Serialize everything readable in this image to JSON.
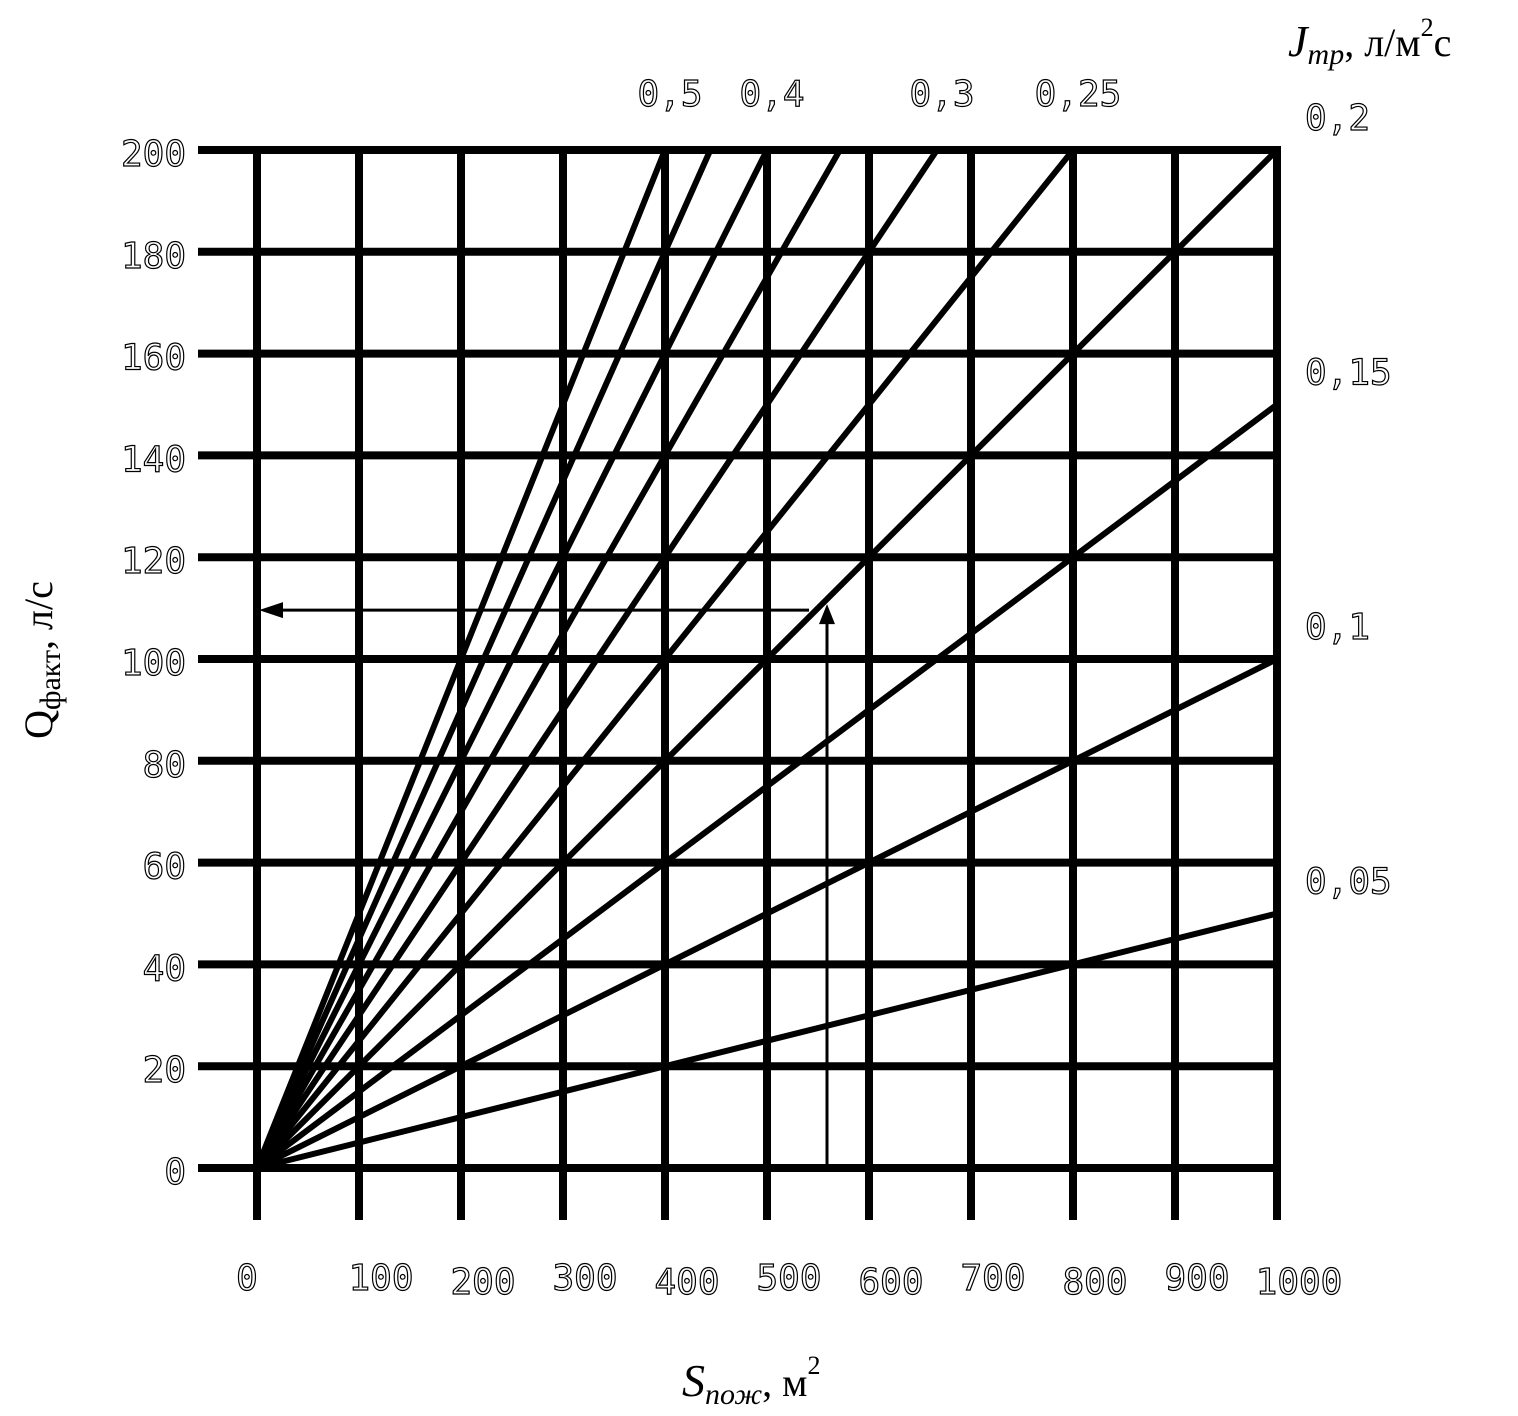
{
  "chart_data": {
    "type": "line",
    "xlabel": {
      "main": "S",
      "sub": "пож",
      "unit": ", м",
      "sup": "2"
    },
    "ylabel": {
      "main": "Q",
      "sub": "факт",
      "unit": ", л/с"
    },
    "param_label": {
      "main": "J",
      "sub": "тр",
      "unit": ", л/м",
      "sup": "2",
      "tail": "с"
    },
    "xlim": [
      0,
      1000
    ],
    "ylim": [
      0,
      200
    ],
    "x_ticks": [
      "0",
      "100",
      "200",
      "300",
      "400",
      "500",
      "600",
      "700",
      "800",
      "900",
      "1000"
    ],
    "y_ticks": [
      "0",
      "20",
      "40",
      "60",
      "80",
      "100",
      "120",
      "140",
      "160",
      "180",
      "200"
    ],
    "grid": true,
    "relation": "Q = J * S",
    "series": [
      {
        "J": 0.5,
        "label": "0,5"
      },
      {
        "J": 0.45,
        "label": ""
      },
      {
        "J": 0.4,
        "label": "0,4"
      },
      {
        "J": 0.35,
        "label": ""
      },
      {
        "J": 0.3,
        "label": "0,3"
      },
      {
        "J": 0.25,
        "label": "0,25"
      },
      {
        "J": 0.2,
        "label": "0,2"
      },
      {
        "J": 0.15,
        "label": "0,15"
      },
      {
        "J": 0.1,
        "label": "0,1"
      },
      {
        "J": 0.05,
        "label": "0,05"
      }
    ],
    "annotation": {
      "S": 550,
      "Q": 110,
      "description_arrows": "vertical arrow from S axis up to line, horizontal arrow to Q axis"
    }
  }
}
